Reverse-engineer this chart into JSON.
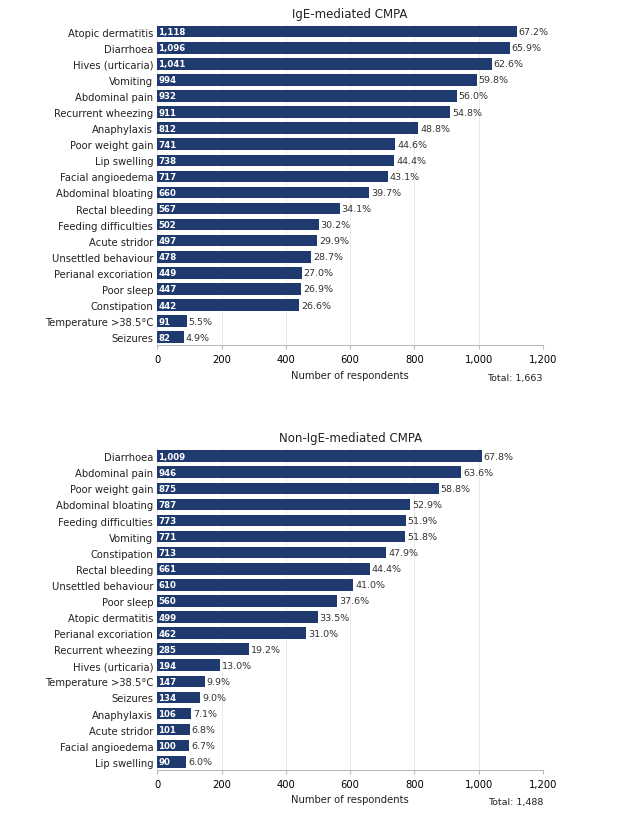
{
  "chart1": {
    "title": "IgE-mediated CMPA",
    "total": "Total: 1,663",
    "xlabel": "Number of respondents",
    "bar_color": "#1e3a6e",
    "categories": [
      "Atopic dermatitis",
      "Diarrhoea",
      "Hives (urticaria)",
      "Vomiting",
      "Abdominal pain",
      "Recurrent wheezing",
      "Anaphylaxis",
      "Poor weight gain",
      "Lip swelling",
      "Facial angioedema",
      "Abdominal bloating",
      "Rectal bleeding",
      "Feeding difficulties",
      "Acute stridor",
      "Unsettled behaviour",
      "Perianal excoriation",
      "Poor sleep",
      "Constipation",
      "Temperature >38.5°C",
      "Seizures"
    ],
    "values": [
      1118,
      1096,
      1041,
      994,
      932,
      911,
      812,
      741,
      738,
      717,
      660,
      567,
      502,
      497,
      478,
      449,
      447,
      442,
      91,
      82
    ],
    "percentages": [
      "67.2%",
      "65.9%",
      "62.6%",
      "59.8%",
      "56.0%",
      "54.8%",
      "48.8%",
      "44.6%",
      "44.4%",
      "43.1%",
      "39.7%",
      "34.1%",
      "30.2%",
      "29.9%",
      "28.7%",
      "27.0%",
      "26.9%",
      "26.6%",
      "5.5%",
      "4.9%"
    ],
    "xlim": [
      0,
      1200
    ],
    "xticks": [
      0,
      200,
      400,
      600,
      800,
      1000,
      1200
    ]
  },
  "chart2": {
    "title": "Non-IgE-mediated CMPA",
    "total": "Total: 1,488",
    "xlabel": "Number of respondents",
    "bar_color": "#1e3a6e",
    "categories": [
      "Diarrhoea",
      "Abdominal pain",
      "Poor weight gain",
      "Abdominal bloating",
      "Feeding difficulties",
      "Vomiting",
      "Constipation",
      "Rectal bleeding",
      "Unsettled behaviour",
      "Poor sleep",
      "Atopic dermatitis",
      "Perianal excoriation",
      "Recurrent wheezing",
      "Hives (urticaria)",
      "Temperature >38.5°C",
      "Seizures",
      "Anaphylaxis",
      "Acute stridor",
      "Facial angioedema",
      "Lip swelling"
    ],
    "values": [
      1009,
      946,
      875,
      787,
      773,
      771,
      713,
      661,
      610,
      560,
      499,
      462,
      285,
      194,
      147,
      134,
      106,
      101,
      100,
      90
    ],
    "percentages": [
      "67.8%",
      "63.6%",
      "58.8%",
      "52.9%",
      "51.9%",
      "51.8%",
      "47.9%",
      "44.4%",
      "41.0%",
      "37.6%",
      "33.5%",
      "31.0%",
      "19.2%",
      "13.0%",
      "9.9%",
      "9.0%",
      "7.1%",
      "6.8%",
      "6.7%",
      "6.0%"
    ],
    "xlim": [
      0,
      1200
    ],
    "xticks": [
      0,
      200,
      400,
      600,
      800,
      1000,
      1200
    ]
  },
  "fig_bg": "#ffffff",
  "text_color": "#222222",
  "bar_label_color": "#ffffff",
  "pct_color": "#333333",
  "title_fontsize": 8.5,
  "label_fontsize": 7.2,
  "bar_label_fontsize": 6.2,
  "pct_fontsize": 6.8,
  "xlabel_fontsize": 7.2,
  "total_fontsize": 6.8,
  "tick_fontsize": 7.2
}
